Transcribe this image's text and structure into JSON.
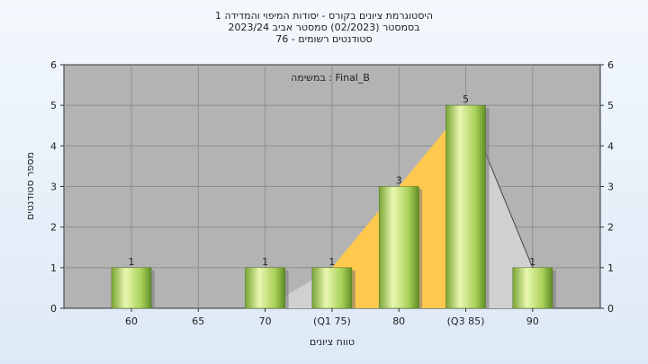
{
  "chart_data": {
    "type": "bar",
    "title_lines": [
      "היסטוגרמת ציונים בקורס - יסודות המיפוי והמדידה 1",
      "בסמסטר  (02/2023)  סמסטר אביב 2023/24",
      "סטודנטים רשומים - 76"
    ],
    "xlabel": "טווח ציונים",
    "ylabel": "מספר סטודנטים",
    "annotation": "במשימה : Final_B",
    "categories": [
      "60",
      "65",
      "70",
      "(Q1 75)",
      "80",
      "(Q3 85)",
      "90"
    ],
    "values": [
      1,
      0,
      1,
      1,
      3,
      5,
      1
    ],
    "value_labels": [
      "1",
      "",
      "1",
      "1",
      "3",
      "5",
      "1"
    ],
    "ylim": [
      0,
      6
    ],
    "yticks": [
      0,
      1,
      2,
      3,
      4,
      5,
      6
    ],
    "grid": true,
    "colors": {
      "plot_bg": "#b3b3b3",
      "bar_light": "#e9f7b0",
      "bar_mid": "#a9d158",
      "bar_dark": "#5f8e25",
      "iqr_fill": "#ffc94d",
      "shadow": "#d0d0d0"
    }
  }
}
